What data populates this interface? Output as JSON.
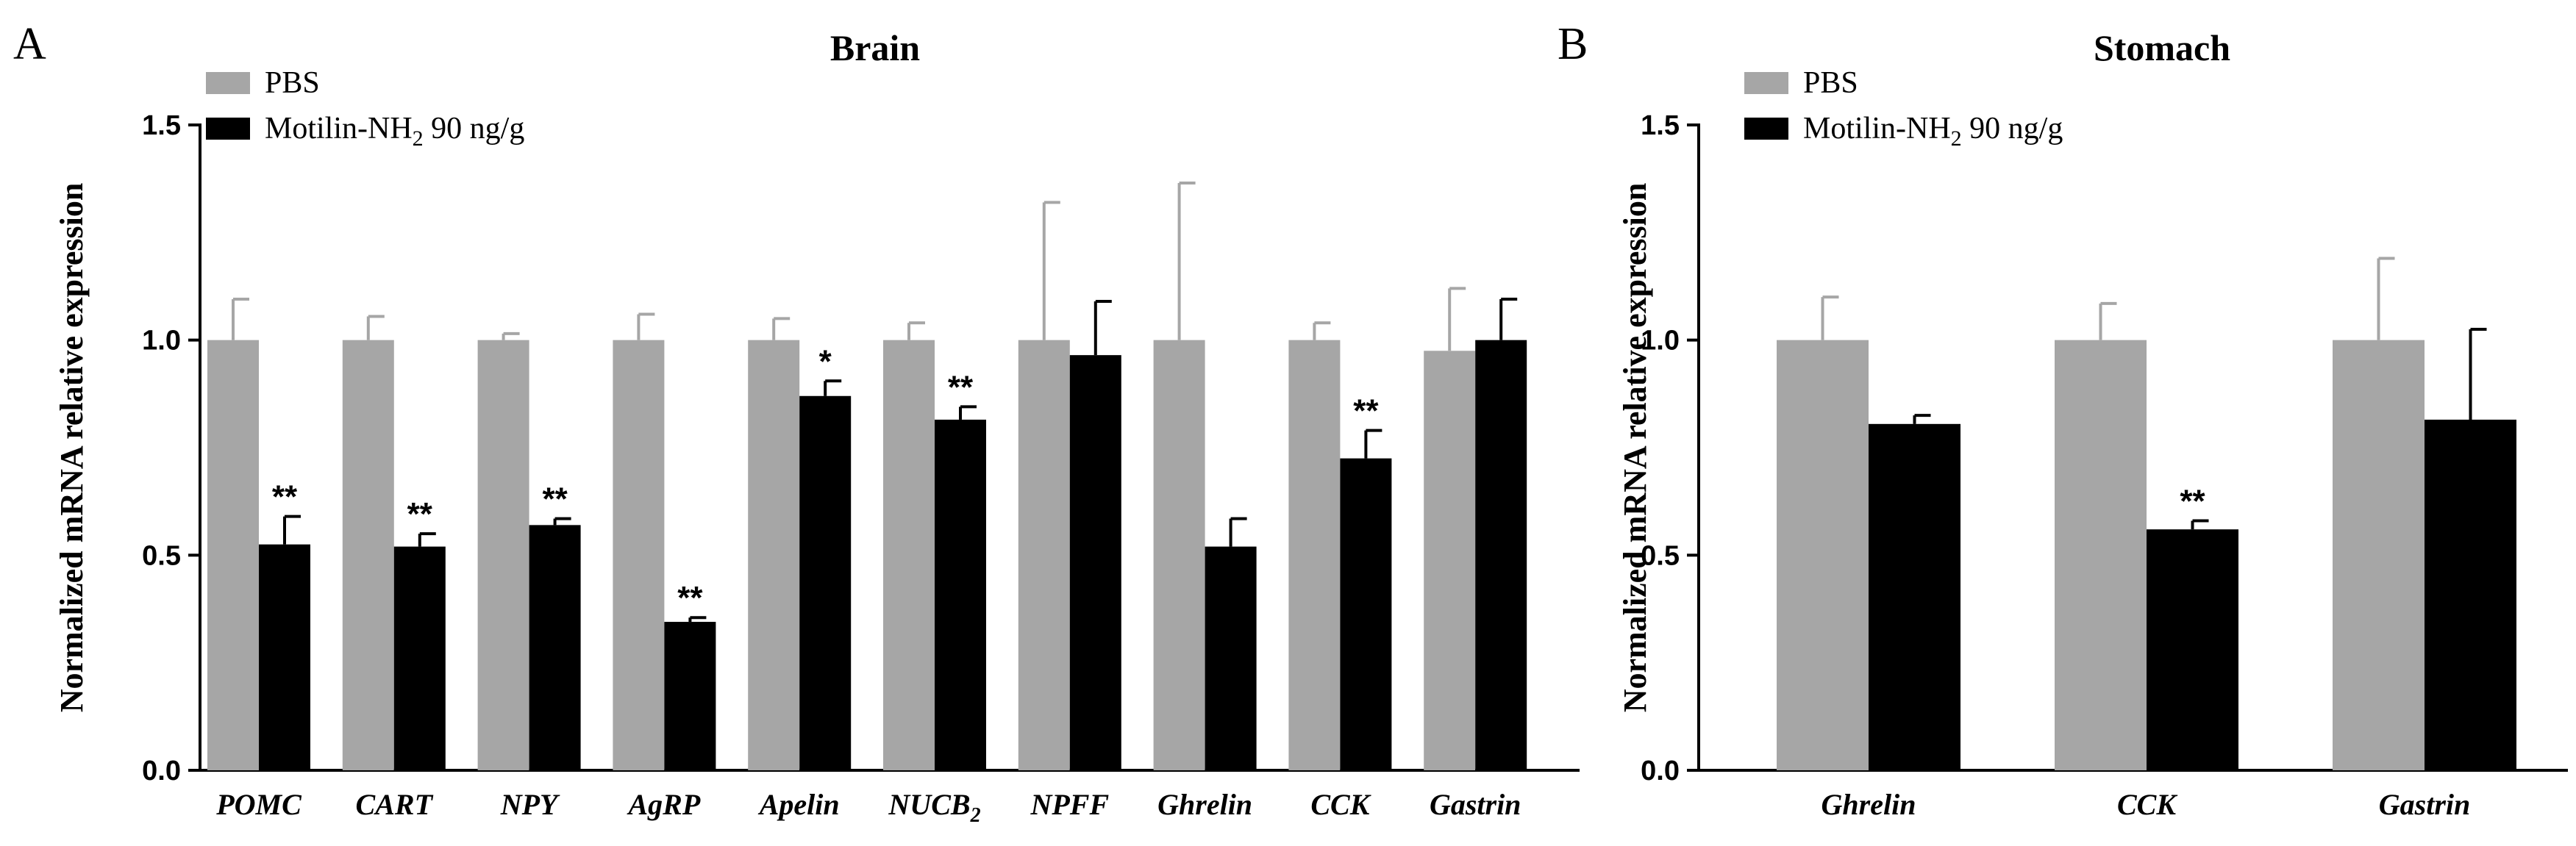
{
  "colors": {
    "pbs": "#a6a6a6",
    "treat": "#000000",
    "axis": "#000000"
  },
  "chart_data": [
    {
      "type": "bar",
      "panel": "A",
      "title": "Brain",
      "ylabel": "Normalized  mRNA relative expression",
      "xlabel": "",
      "ylim": [
        0,
        1.5
      ],
      "yticks": [
        "0.0",
        "0.5",
        "1.0",
        "1.5"
      ],
      "legend": {
        "position": "top-left",
        "pbs": "PBS",
        "treat_main": "Motilin-NH",
        "treat_sub": "2",
        "treat_rest": " 90 ng/g"
      },
      "categories": [
        {
          "main": "POMC",
          "sub": ""
        },
        {
          "main": "CART",
          "sub": ""
        },
        {
          "main": "NPY",
          "sub": ""
        },
        {
          "main": "AgRP",
          "sub": ""
        },
        {
          "main": "Apelin",
          "sub": ""
        },
        {
          "main": "NUCB",
          "sub": "2"
        },
        {
          "main": "NPFF",
          "sub": ""
        },
        {
          "main": "Ghrelin",
          "sub": ""
        },
        {
          "main": "CCK",
          "sub": ""
        },
        {
          "main": "Gastrin",
          "sub": ""
        }
      ],
      "series": [
        {
          "name": "PBS",
          "values": [
            1.0,
            1.0,
            1.0,
            1.0,
            1.0,
            1.0,
            1.0,
            1.0,
            1.0,
            0.975
          ],
          "errors": [
            0.095,
            0.055,
            0.015,
            0.06,
            0.05,
            0.04,
            0.32,
            0.365,
            0.04,
            0.145
          ]
        },
        {
          "name": "Motilin-NH2 90 ng/g",
          "values": [
            0.525,
            0.52,
            0.57,
            0.345,
            0.87,
            0.815,
            0.965,
            0.52,
            0.725,
            1.0
          ],
          "errors": [
            0.065,
            0.03,
            0.015,
            0.01,
            0.035,
            0.03,
            0.125,
            0.065,
            0.065,
            0.095
          ]
        }
      ],
      "significance": [
        "**",
        "**",
        "**",
        "**",
        "*",
        "**",
        "",
        "",
        "**",
        ""
      ]
    },
    {
      "type": "bar",
      "panel": "B",
      "title": "Stomach",
      "ylabel": "Normalized  mRNA relative expression",
      "xlabel": "",
      "ylim": [
        0,
        1.5
      ],
      "yticks": [
        "0.0",
        "0.5",
        "1.0",
        "1.5"
      ],
      "legend": {
        "position": "top-left",
        "pbs": "PBS",
        "treat_main": "Motilin-NH",
        "treat_sub": "2",
        "treat_rest": " 90 ng/g"
      },
      "categories": [
        {
          "main": "Ghrelin",
          "sub": ""
        },
        {
          "main": "CCK",
          "sub": ""
        },
        {
          "main": "Gastrin",
          "sub": ""
        }
      ],
      "series": [
        {
          "name": "PBS",
          "values": [
            1.0,
            1.0,
            1.0
          ],
          "errors": [
            0.1,
            0.085,
            0.19
          ]
        },
        {
          "name": "Motilin-NH2 90 ng/g",
          "values": [
            0.805,
            0.56,
            0.815
          ],
          "errors": [
            0.02,
            0.02,
            0.21
          ]
        }
      ],
      "significance": [
        "",
        "**",
        ""
      ]
    }
  ]
}
